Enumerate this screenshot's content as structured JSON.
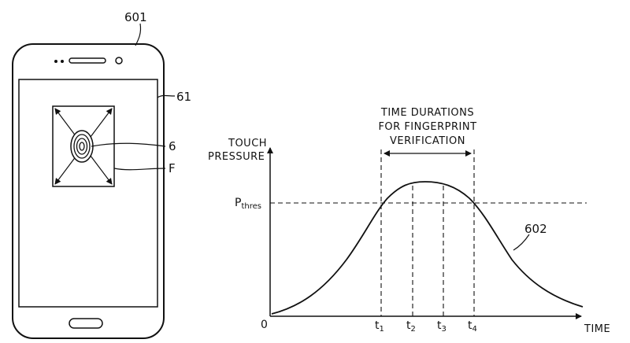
{
  "phone": {
    "ref_device": "601",
    "ref_display": "61",
    "ref_fingerprint": "6",
    "ref_area": "F"
  },
  "graph": {
    "ylabel_line1": "TOUCH",
    "ylabel_line2": "PRESSURE",
    "xlabel": "TIME",
    "origin": "0",
    "threshold_main": "P",
    "threshold_sub": "thres",
    "duration_line1": "TIME DURATIONS",
    "duration_line2": "FOR FINGERPRINT",
    "duration_line3": "VERIFICATION",
    "curve_ref": "602",
    "ticks": [
      {
        "main": "t",
        "sub": "1"
      },
      {
        "main": "t",
        "sub": "2"
      },
      {
        "main": "t",
        "sub": "3"
      },
      {
        "main": "t",
        "sub": "4"
      }
    ]
  }
}
